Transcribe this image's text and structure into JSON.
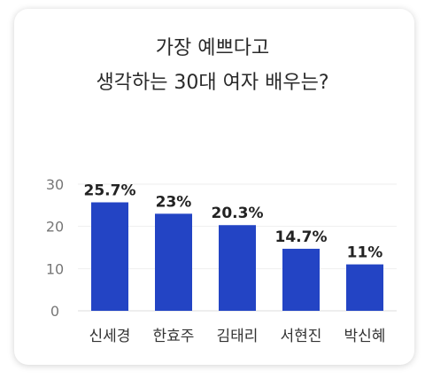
{
  "chart_data": {
    "type": "bar",
    "title_line1": "가장 예쁘다고",
    "title_line2": "생각하는 30대 여자 배우는?",
    "categories": [
      "신세경",
      "한효주",
      "김태리",
      "서현진",
      "박신혜"
    ],
    "values": [
      25.7,
      23,
      20.3,
      14.7,
      11
    ],
    "value_labels": [
      "25.7%",
      "23%",
      "20.3%",
      "14.7%",
      "11%"
    ],
    "ylim": [
      0,
      30
    ],
    "yticks": [
      0,
      10,
      20,
      30
    ],
    "bar_color": "#2344c4",
    "grid": true,
    "xlabel": "",
    "ylabel": ""
  }
}
